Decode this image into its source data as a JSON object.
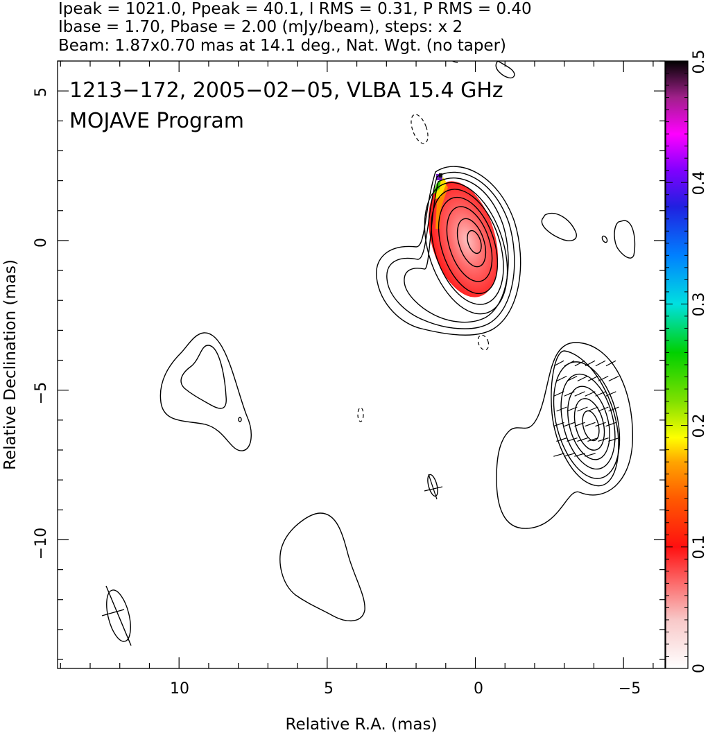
{
  "header": {
    "line1": "Ipeak = 1021.0, Ppeak = 40.1, I RMS = 0.31, P RMS = 0.40",
    "line2": "Ibase = 1.70, Pbase = 2.00 (mJy/beam), steps: x 2",
    "line3": "Beam: 1.87x0.70 mas at 14.1 deg., Nat. Wgt. (no taper)"
  },
  "chart_data": {
    "type": "heatmap",
    "title": "1213−172, 2005−02−05, VLBA 15.4 GHz",
    "subtitle": "MOJAVE Program",
    "xlabel": "Relative R.A. (mas)",
    "ylabel": "Relative Declination (mas)",
    "xlim": [
      14.1,
      -6.4
    ],
    "ylim": [
      -14.3,
      6.0
    ],
    "x_ticks": [
      10,
      5,
      0,
      -5
    ],
    "x_tick_labels": [
      "10",
      "5",
      "0",
      "−5"
    ],
    "y_ticks": [
      5,
      0,
      -5,
      -10
    ],
    "y_tick_labels": [
      "5",
      "0",
      "−5",
      "−10"
    ],
    "colorbar": {
      "min": 0,
      "max": 0.5,
      "ticks": [
        0,
        0.1,
        0.2,
        0.3,
        0.4,
        0.5
      ],
      "tick_labels": [
        "0",
        "0.1",
        "0.2",
        "0.3",
        "0.4",
        "0.5"
      ]
    },
    "beam": {
      "major_mas": 1.87,
      "minor_mas": 0.7,
      "pa_deg": 14.1,
      "center": [
        12.3,
        -12.4
      ]
    },
    "core": {
      "center": [
        0.1,
        0.0
      ],
      "levels": 9,
      "color_max_frac_pol": 0.5
    },
    "jet_component": {
      "center": [
        -3.8,
        -6.0
      ]
    },
    "faint_contours": [
      {
        "center": [
          9.3,
          -5.0
        ]
      },
      {
        "center": [
          5.1,
          -11.0
        ]
      },
      {
        "center": [
          -2.7,
          -0.3
        ]
      },
      {
        "center": [
          -4.9,
          0.0
        ]
      },
      {
        "center": [
          -1.1,
          6.0
        ]
      }
    ],
    "negative_contours": [
      {
        "center": [
          1.9,
          3.8
        ]
      },
      {
        "center": [
          -0.1,
          -3.4
        ]
      },
      {
        "center": [
          3.9,
          -5.8
        ]
      }
    ],
    "polarization_vectors": {
      "region_center": [
        -3.5,
        -6.2
      ],
      "count": 40
    }
  }
}
